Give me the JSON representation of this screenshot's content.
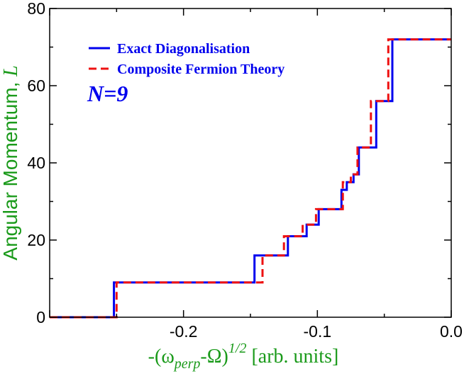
{
  "chart_data": {
    "type": "line",
    "xlim": [
      -0.3,
      0.0
    ],
    "ylim": [
      0,
      80
    ],
    "x_ticks": [
      -0.2,
      -0.1,
      0.0
    ],
    "x_tick_labels": [
      "-0.2",
      "-0.1",
      "0.0"
    ],
    "y_ticks": [
      0,
      20,
      40,
      60,
      80
    ],
    "y_tick_labels": [
      "0",
      "20",
      "40",
      "60",
      "80"
    ],
    "ylabel_text": "Angular Momentum, ",
    "ylabel_symbol": "L",
    "xlabel_pre": "-(ω",
    "xlabel_sub": "perp",
    "xlabel_mid": "-Ω)",
    "xlabel_sup": "1/2",
    "xlabel_post": " [arb. units]",
    "annotation": "N=9",
    "grid": false,
    "legend_position": "top-left",
    "series": [
      {
        "name": "Exact Diagonalisation",
        "color": "#0000ee",
        "style": "solid",
        "x": [
          -0.3,
          -0.252,
          -0.252,
          -0.147,
          -0.147,
          -0.122,
          -0.122,
          -0.108,
          -0.108,
          -0.099,
          -0.099,
          -0.082,
          -0.082,
          -0.078,
          -0.078,
          -0.073,
          -0.073,
          -0.069,
          -0.069,
          -0.056,
          -0.056,
          -0.044,
          -0.044,
          0.0
        ],
        "y": [
          0,
          0,
          9,
          9,
          16,
          16,
          21,
          21,
          24,
          24,
          28,
          28,
          33,
          33,
          35,
          35,
          37,
          37,
          44,
          44,
          56,
          56,
          72,
          72
        ]
      },
      {
        "name": "Composite Fermion Theory",
        "color": "#ee1111",
        "style": "dashed",
        "x": [
          -0.3,
          -0.25,
          -0.25,
          -0.141,
          -0.141,
          -0.125,
          -0.125,
          -0.111,
          -0.111,
          -0.101,
          -0.101,
          -0.081,
          -0.081,
          -0.075,
          -0.075,
          -0.07,
          -0.07,
          -0.06,
          -0.06,
          -0.047,
          -0.047,
          0.0
        ],
        "y": [
          0,
          0,
          9,
          9,
          16,
          16,
          21,
          21,
          24,
          24,
          28,
          28,
          35,
          35,
          37,
          37,
          44,
          44,
          56,
          56,
          72,
          72
        ]
      }
    ]
  }
}
